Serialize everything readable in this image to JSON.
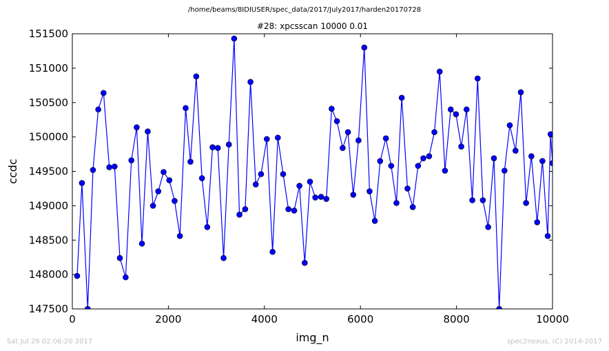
{
  "figure": {
    "suptitle": "/home/beams/8IDIUSER/spec_data/2017/July2017/harden20170728",
    "footer_left": "Sat Jul 29 02:06:20 2017",
    "footer_right": "spec2nexus, (C) 2014-2017"
  },
  "chart_data": {
    "type": "line",
    "title": "#28: xpcsscan 10000 0.01",
    "xlabel": "img_n",
    "ylabel": "ccdc",
    "xlim": [
      0,
      10000
    ],
    "ylim": [
      147500,
      151500
    ],
    "x_ticks": [
      "0",
      "2000",
      "4000",
      "6000",
      "8000",
      "10000"
    ],
    "y_ticks": [
      "147500",
      "148000",
      "148500",
      "149000",
      "149500",
      "150000",
      "150500",
      "151000",
      "151500"
    ],
    "grid": false,
    "marker": "circle",
    "color": "#0000ff",
    "series": [
      {
        "x": [
          100,
          200,
          320,
          430,
          540,
          650,
          770,
          880,
          990,
          1110,
          1230,
          1340,
          1450,
          1570,
          1680,
          1790,
          1900,
          2020,
          2130,
          2240,
          2360,
          2460,
          2580,
          2700,
          2810,
          2920,
          3030,
          3150,
          3260,
          3370,
          3480,
          3600,
          3710,
          3820,
          3930,
          4050,
          4170,
          4280,
          4390,
          4500,
          4620,
          4730,
          4840,
          4950,
          5060,
          5180,
          5290,
          5400,
          5510,
          5630,
          5740,
          5850,
          5960,
          6080,
          6190,
          6300,
          6410,
          6530,
          6640,
          6750,
          6860,
          6980,
          7090,
          7200,
          7310,
          7430,
          7540,
          7650,
          7760,
          7880,
          7990,
          8100,
          8210,
          8330,
          8440,
          8550,
          8660,
          8780,
          8890,
          9000,
          9110,
          9230,
          9340,
          9450,
          9560,
          9680,
          9790,
          9900,
          9960,
          10000
        ],
        "y": [
          147980,
          149330,
          147500,
          149520,
          150400,
          150640,
          149560,
          149570,
          148240,
          147960,
          149660,
          150140,
          148450,
          150080,
          149000,
          149210,
          149490,
          149370,
          149070,
          148560,
          150420,
          149640,
          150880,
          149400,
          148690,
          149850,
          149840,
          148240,
          149890,
          151430,
          148870,
          148950,
          150800,
          149310,
          149460,
          149970,
          148330,
          149990,
          149460,
          148950,
          148930,
          149290,
          148170,
          149350,
          149120,
          149130,
          149100,
          150410,
          150230,
          149840,
          150070,
          149160,
          149950,
          151300,
          149210,
          148780,
          149650,
          149980,
          149580,
          149040,
          150570,
          149250,
          148980,
          149580,
          149690,
          149720,
          150070,
          150950,
          149510,
          150400,
          150330,
          149860,
          150400,
          149080,
          150850,
          149080,
          148690,
          149690,
          147500,
          149510,
          150170,
          149800,
          150650,
          149040,
          149720,
          148760,
          149650,
          148560,
          150040,
          149620
        ]
      }
    ]
  }
}
